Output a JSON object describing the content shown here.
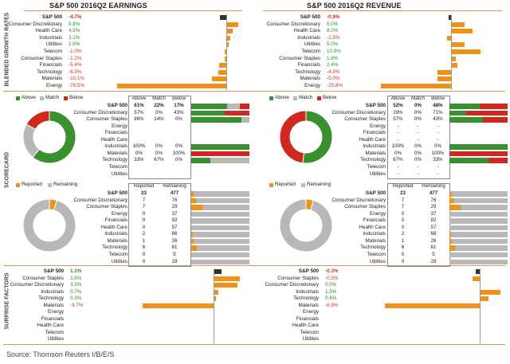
{
  "titles": {
    "earnings": "S&P 500 2016Q2 EARNINGS",
    "revenue": "S&P 500 2016Q2 REVENUE"
  },
  "side_labels": {
    "growth": "BLENDED GROWTH RATES",
    "scorecard": "SCORECARD",
    "surprise": "SURPRISE FACTORS"
  },
  "colors": {
    "orange": "#f0921a",
    "green": "#3a8f2e",
    "red": "#d0281e",
    "gray": "#b8b8b8",
    "pos_text": "#2e8b2e",
    "neg_text": "#c83030"
  },
  "legend_scorecard": {
    "above": "Above",
    "match": "Match",
    "below": "Below"
  },
  "legend_reported": {
    "reported": "Reported",
    "remaining": "Remaining"
  },
  "source": "Source: Thomson Reuters I/B/E/S",
  "chart_data": [
    {
      "type": "bar",
      "title": "S&P 500 2016Q2 EARNINGS - Blended Growth Rates",
      "categories": [
        "S&P 500",
        "Consumer Discretionary",
        "Health Care",
        "Industrials",
        "Utilities",
        "Telecom",
        "Consumer Staples",
        "Financials",
        "Technology",
        "Materials",
        "Energy"
      ],
      "labels": [
        "-4.7%",
        "8.8%",
        "4.5%",
        "3.1%",
        "1.6%",
        "-1.0%",
        "-1.2%",
        "-5.4%",
        "-6.0%",
        "-10.1%",
        "-78.5%"
      ],
      "values": [
        -4.7,
        8.8,
        4.5,
        3.1,
        1.6,
        -1.0,
        -1.2,
        -5.4,
        -6.0,
        -10.1,
        -78.5
      ]
    },
    {
      "type": "bar",
      "title": "S&P 500 2016Q2 REVENUE - Blended Growth Rates",
      "categories": [
        "S&P 500",
        "Consumer Discretionary",
        "Health Care",
        "Industrials",
        "Utilities",
        "Telecom",
        "Consumer Staples",
        "Financials",
        "Technology",
        "Materials",
        "Energy"
      ],
      "labels": [
        "-0.9%",
        "5.0%",
        "8.0%",
        "-1.5%",
        "5.0%",
        "10.9%",
        "1.8%",
        "2.4%",
        "-4.9%",
        "-5.0%",
        "-25.8%"
      ],
      "values": [
        -0.9,
        5.0,
        8.0,
        -1.5,
        5.0,
        10.9,
        1.8,
        2.4,
        -4.9,
        -5.0,
        -25.8
      ]
    },
    {
      "type": "table",
      "title": "EARNINGS Scorecard",
      "headers": [
        "Above",
        "Match",
        "Below"
      ],
      "rows": [
        {
          "name": "S&P 500",
          "above": "61%",
          "match": "22%",
          "below": "17%",
          "a": 61,
          "m": 22,
          "b": 17
        },
        {
          "name": "Consumer Discretionary",
          "above": "57%",
          "match": "0%",
          "below": "43%",
          "a": 57,
          "m": 0,
          "b": 43
        },
        {
          "name": "Consumer Staples",
          "above": "86%",
          "match": "14%",
          "below": "0%",
          "a": 86,
          "m": 14,
          "b": 0
        },
        {
          "name": "Energy",
          "above": "",
          "match": "",
          "below": "",
          "a": 0,
          "m": 0,
          "b": 0
        },
        {
          "name": "Financials",
          "above": "",
          "match": "",
          "below": "",
          "a": 0,
          "m": 0,
          "b": 0
        },
        {
          "name": "Health Care",
          "above": "",
          "match": "",
          "below": "",
          "a": 0,
          "m": 0,
          "b": 0
        },
        {
          "name": "Industrials",
          "above": "100%",
          "match": "0%",
          "below": "0%",
          "a": 100,
          "m": 0,
          "b": 0
        },
        {
          "name": "Materials",
          "above": "0%",
          "match": "0%",
          "below": "100%",
          "a": 0,
          "m": 0,
          "b": 100
        },
        {
          "name": "Technology",
          "above": "33%",
          "match": "67%",
          "below": "0%",
          "a": 33,
          "m": 67,
          "b": 0
        },
        {
          "name": "Telecom",
          "above": "",
          "match": "",
          "below": "",
          "a": 0,
          "m": 0,
          "b": 0
        },
        {
          "name": "Utilities",
          "above": "",
          "match": "",
          "below": "",
          "a": 0,
          "m": 0,
          "b": 0
        }
      ],
      "pie": {
        "above": 61,
        "match": 22,
        "below": 17
      }
    },
    {
      "type": "table",
      "title": "REVENUE Scorecard",
      "headers": [
        "Above",
        "Match",
        "Below"
      ],
      "rows": [
        {
          "name": "S&P 500",
          "above": "52%",
          "match": "0%",
          "below": "48%",
          "a": 52,
          "m": 0,
          "b": 48
        },
        {
          "name": "Consumer Discretionary",
          "above": "29%",
          "match": "0%",
          "below": "71%",
          "a": 29,
          "m": 0,
          "b": 71
        },
        {
          "name": "Consumer Staples",
          "above": "57%",
          "match": "0%",
          "below": "43%",
          "a": 57,
          "m": 0,
          "b": 43
        },
        {
          "name": "Energy",
          "above": "-",
          "match": "-",
          "below": "-",
          "a": 0,
          "m": 0,
          "b": 0
        },
        {
          "name": "Financials",
          "above": "-",
          "match": "-",
          "below": "-",
          "a": 0,
          "m": 0,
          "b": 0
        },
        {
          "name": "Health Care",
          "above": "-",
          "match": "-",
          "below": "-",
          "a": 0,
          "m": 0,
          "b": 0
        },
        {
          "name": "Industrials",
          "above": "100%",
          "match": "0%",
          "below": "0%",
          "a": 100,
          "m": 0,
          "b": 0
        },
        {
          "name": "Materials",
          "above": "0%",
          "match": "0%",
          "below": "100%",
          "a": 0,
          "m": 0,
          "b": 100
        },
        {
          "name": "Technology",
          "above": "67%",
          "match": "0%",
          "below": "33%",
          "a": 67,
          "m": 0,
          "b": 33
        },
        {
          "name": "Telecom",
          "above": "-",
          "match": "-",
          "below": "-",
          "a": 0,
          "m": 0,
          "b": 0
        },
        {
          "name": "Utilities",
          "above": "-",
          "match": "-",
          "below": "-",
          "a": 0,
          "m": 0,
          "b": 0
        }
      ],
      "pie": {
        "above": 52,
        "match": 0,
        "below": 48
      }
    },
    {
      "type": "table",
      "title": "EARNINGS Reported / Remaining",
      "headers": [
        "Reported",
        "Remaining"
      ],
      "rows": [
        {
          "name": "S&P 500",
          "reported": 23,
          "remaining": 477
        },
        {
          "name": "Consumer Discretionary",
          "reported": 7,
          "remaining": 76
        },
        {
          "name": "Consumer Staples",
          "reported": 7,
          "remaining": 29
        },
        {
          "name": "Energy",
          "reported": 0,
          "remaining": 37
        },
        {
          "name": "Financials",
          "reported": 0,
          "remaining": 92
        },
        {
          "name": "Health Care",
          "reported": 0,
          "remaining": 57
        },
        {
          "name": "Industrials",
          "reported": 2,
          "remaining": 66
        },
        {
          "name": "Materials",
          "reported": 1,
          "remaining": 26
        },
        {
          "name": "Technology",
          "reported": 6,
          "remaining": 61
        },
        {
          "name": "Telecom",
          "reported": 0,
          "remaining": 5
        },
        {
          "name": "Utilities",
          "reported": 0,
          "remaining": 28
        }
      ]
    },
    {
      "type": "table",
      "title": "REVENUE Reported / Remaining",
      "headers": [
        "Reported",
        "Remaining"
      ],
      "rows": [
        {
          "name": "S&P 500",
          "reported": 23,
          "remaining": 477
        },
        {
          "name": "Consumer Discretionary",
          "reported": 7,
          "remaining": 76
        },
        {
          "name": "Consumer Staples",
          "reported": 7,
          "remaining": 29
        },
        {
          "name": "Energy",
          "reported": 0,
          "remaining": 37
        },
        {
          "name": "Financials",
          "reported": 0,
          "remaining": 92
        },
        {
          "name": "Health Care",
          "reported": 0,
          "remaining": 57
        },
        {
          "name": "Industrials",
          "reported": 2,
          "remaining": 66
        },
        {
          "name": "Materials",
          "reported": 1,
          "remaining": 26
        },
        {
          "name": "Technology",
          "reported": 6,
          "remaining": 61
        },
        {
          "name": "Telecom",
          "reported": 0,
          "remaining": 5
        },
        {
          "name": "Utilities",
          "reported": 0,
          "remaining": 28
        }
      ]
    },
    {
      "type": "bar",
      "title": "EARNINGS Surprise Factors",
      "categories": [
        "S&P 500",
        "Consumer Staples",
        "Consumer Discretionary",
        "Industrials",
        "Technology",
        "Materials",
        "Energy",
        "Financials",
        "Health Care",
        "Telecom",
        "Utilities"
      ],
      "labels": [
        "1.1%",
        "3.6%",
        "3.3%",
        "0.7%",
        "0.3%",
        "-9.7%",
        "",
        "",
        "",
        "",
        ""
      ],
      "values": [
        1.1,
        3.6,
        3.3,
        0.7,
        0.3,
        -9.7,
        null,
        null,
        null,
        null,
        null
      ]
    },
    {
      "type": "bar",
      "title": "REVENUE Surprise Factors",
      "categories": [
        "S&P 500",
        "Consumer Staples",
        "Consumer Discretionary",
        "Industrials",
        "Technology",
        "Materials",
        "Energy",
        "Financials",
        "Health Care",
        "Telecom",
        "Utilities"
      ],
      "labels": [
        "-0.3%",
        "-0.5%",
        "0.0%",
        "1.5%",
        "0.6%",
        "-6.8%",
        "",
        "",
        "",
        "",
        ""
      ],
      "values": [
        -0.3,
        -0.5,
        0.0,
        1.5,
        0.6,
        -6.8,
        null,
        null,
        null,
        null,
        null
      ]
    }
  ]
}
